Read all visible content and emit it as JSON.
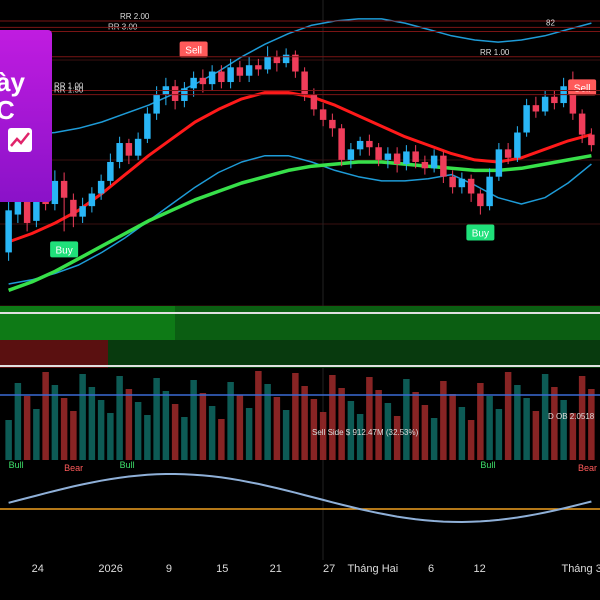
{
  "promo": {
    "text": "ày\nC",
    "icon": "chart-up-icon"
  },
  "chart_data": {
    "type": "candlestick",
    "xlabel": "",
    "ylabel": "",
    "x_ticks": [
      "24",
      "2026",
      "9",
      "15",
      "21",
      "27",
      "Tháng Hai",
      "6",
      "12",
      "Tháng 3"
    ],
    "candles": [
      {
        "o": 1.0,
        "c": 3.0,
        "h": 3.5,
        "l": 0.6,
        "d": "bull"
      },
      {
        "o": 2.8,
        "c": 3.6,
        "h": 4.2,
        "l": 2.4,
        "d": "bull"
      },
      {
        "o": 3.6,
        "c": 2.4,
        "h": 4.0,
        "l": 2.0,
        "d": "bear"
      },
      {
        "o": 2.5,
        "c": 3.9,
        "h": 4.4,
        "l": 2.2,
        "d": "bull"
      },
      {
        "o": 3.9,
        "c": 3.3,
        "h": 4.3,
        "l": 3.0,
        "d": "bear"
      },
      {
        "o": 3.3,
        "c": 4.4,
        "h": 4.9,
        "l": 3.0,
        "d": "bull"
      },
      {
        "o": 4.4,
        "c": 3.6,
        "h": 4.8,
        "l": 2.0,
        "d": "bear"
      },
      {
        "o": 3.5,
        "c": 2.7,
        "h": 3.8,
        "l": 2.2,
        "d": "bear"
      },
      {
        "o": 2.7,
        "c": 3.2,
        "h": 3.6,
        "l": 2.4,
        "d": "bull"
      },
      {
        "o": 3.2,
        "c": 3.8,
        "h": 4.1,
        "l": 2.9,
        "d": "bull"
      },
      {
        "o": 3.8,
        "c": 4.4,
        "h": 4.7,
        "l": 3.5,
        "d": "bull"
      },
      {
        "o": 4.4,
        "c": 5.3,
        "h": 5.7,
        "l": 4.2,
        "d": "bull"
      },
      {
        "o": 5.3,
        "c": 6.2,
        "h": 6.5,
        "l": 5.0,
        "d": "bull"
      },
      {
        "o": 6.2,
        "c": 5.6,
        "h": 6.4,
        "l": 5.2,
        "d": "bear"
      },
      {
        "o": 5.6,
        "c": 6.4,
        "h": 6.7,
        "l": 5.4,
        "d": "bull"
      },
      {
        "o": 6.4,
        "c": 7.6,
        "h": 7.9,
        "l": 6.2,
        "d": "bull"
      },
      {
        "o": 7.6,
        "c": 8.5,
        "h": 8.9,
        "l": 7.3,
        "d": "bull"
      },
      {
        "o": 8.5,
        "c": 8.9,
        "h": 9.3,
        "l": 8.0,
        "d": "bull"
      },
      {
        "o": 8.9,
        "c": 8.2,
        "h": 9.2,
        "l": 7.8,
        "d": "bear"
      },
      {
        "o": 8.2,
        "c": 8.8,
        "h": 9.1,
        "l": 7.9,
        "d": "bull"
      },
      {
        "o": 8.8,
        "c": 9.3,
        "h": 9.6,
        "l": 8.4,
        "d": "bull"
      },
      {
        "o": 9.3,
        "c": 9.0,
        "h": 9.7,
        "l": 8.6,
        "d": "bear"
      },
      {
        "o": 9.0,
        "c": 9.6,
        "h": 9.9,
        "l": 8.7,
        "d": "bull"
      },
      {
        "o": 9.6,
        "c": 9.1,
        "h": 9.9,
        "l": 8.8,
        "d": "bear"
      },
      {
        "o": 9.1,
        "c": 9.8,
        "h": 10.2,
        "l": 8.8,
        "d": "bull"
      },
      {
        "o": 9.8,
        "c": 9.4,
        "h": 10.1,
        "l": 9.1,
        "d": "bear"
      },
      {
        "o": 9.4,
        "c": 9.9,
        "h": 10.3,
        "l": 9.1,
        "d": "bull"
      },
      {
        "o": 9.9,
        "c": 9.7,
        "h": 10.2,
        "l": 9.4,
        "d": "bear"
      },
      {
        "o": 9.7,
        "c": 10.3,
        "h": 10.8,
        "l": 9.5,
        "d": "bull"
      },
      {
        "o": 10.3,
        "c": 10.0,
        "h": 10.6,
        "l": 9.6,
        "d": "bear"
      },
      {
        "o": 10.0,
        "c": 10.4,
        "h": 10.7,
        "l": 9.8,
        "d": "bull"
      },
      {
        "o": 10.4,
        "c": 9.6,
        "h": 10.6,
        "l": 9.3,
        "d": "bear"
      },
      {
        "o": 9.6,
        "c": 8.5,
        "h": 9.8,
        "l": 8.2,
        "d": "bear"
      },
      {
        "o": 8.5,
        "c": 7.8,
        "h": 8.8,
        "l": 7.5,
        "d": "bear"
      },
      {
        "o": 7.8,
        "c": 7.3,
        "h": 8.1,
        "l": 7.0,
        "d": "bear"
      },
      {
        "o": 7.3,
        "c": 6.9,
        "h": 7.6,
        "l": 6.5,
        "d": "bear"
      },
      {
        "o": 6.9,
        "c": 5.4,
        "h": 7.1,
        "l": 5.1,
        "d": "bear"
      },
      {
        "o": 5.4,
        "c": 5.9,
        "h": 6.2,
        "l": 5.0,
        "d": "bull"
      },
      {
        "o": 5.9,
        "c": 6.3,
        "h": 6.5,
        "l": 5.6,
        "d": "bull"
      },
      {
        "o": 6.3,
        "c": 6.0,
        "h": 6.6,
        "l": 5.6,
        "d": "bear"
      },
      {
        "o": 6.0,
        "c": 5.4,
        "h": 6.2,
        "l": 5.1,
        "d": "bear"
      },
      {
        "o": 5.4,
        "c": 5.7,
        "h": 6.0,
        "l": 5.0,
        "d": "bull"
      },
      {
        "o": 5.7,
        "c": 5.2,
        "h": 6.0,
        "l": 4.8,
        "d": "bear"
      },
      {
        "o": 5.2,
        "c": 5.8,
        "h": 6.1,
        "l": 4.9,
        "d": "bull"
      },
      {
        "o": 5.8,
        "c": 5.3,
        "h": 6.1,
        "l": 5.0,
        "d": "bear"
      },
      {
        "o": 5.3,
        "c": 5.0,
        "h": 5.6,
        "l": 4.7,
        "d": "bear"
      },
      {
        "o": 5.0,
        "c": 5.6,
        "h": 5.9,
        "l": 4.8,
        "d": "bull"
      },
      {
        "o": 5.6,
        "c": 4.6,
        "h": 5.8,
        "l": 4.3,
        "d": "bear"
      },
      {
        "o": 4.6,
        "c": 4.1,
        "h": 4.9,
        "l": 3.8,
        "d": "bear"
      },
      {
        "o": 4.1,
        "c": 4.5,
        "h": 4.8,
        "l": 3.8,
        "d": "bull"
      },
      {
        "o": 4.5,
        "c": 3.8,
        "h": 4.7,
        "l": 3.4,
        "d": "bear"
      },
      {
        "o": 3.8,
        "c": 3.2,
        "h": 4.0,
        "l": 2.8,
        "d": "bear"
      },
      {
        "o": 3.2,
        "c": 4.6,
        "h": 5.0,
        "l": 3.0,
        "d": "bull"
      },
      {
        "o": 4.6,
        "c": 5.9,
        "h": 6.2,
        "l": 4.4,
        "d": "bull"
      },
      {
        "o": 5.9,
        "c": 5.5,
        "h": 6.2,
        "l": 5.2,
        "d": "bear"
      },
      {
        "o": 5.5,
        "c": 6.7,
        "h": 7.0,
        "l": 5.3,
        "d": "bull"
      },
      {
        "o": 6.7,
        "c": 8.0,
        "h": 8.3,
        "l": 6.5,
        "d": "bull"
      },
      {
        "o": 8.0,
        "c": 7.7,
        "h": 8.4,
        "l": 7.4,
        "d": "bear"
      },
      {
        "o": 7.7,
        "c": 8.4,
        "h": 8.7,
        "l": 7.5,
        "d": "bull"
      },
      {
        "o": 8.4,
        "c": 8.1,
        "h": 8.7,
        "l": 7.8,
        "d": "bear"
      },
      {
        "o": 8.1,
        "c": 8.9,
        "h": 9.3,
        "l": 7.9,
        "d": "bull"
      },
      {
        "o": 8.9,
        "c": 7.6,
        "h": 9.6,
        "l": 7.3,
        "d": "bear"
      },
      {
        "o": 7.6,
        "c": 6.6,
        "h": 7.8,
        "l": 6.2,
        "d": "bear"
      },
      {
        "o": 6.6,
        "c": 6.1,
        "h": 6.9,
        "l": 5.8,
        "d": "bear"
      }
    ],
    "bollinger_upper": [
      6.5,
      6.6,
      6.7,
      6.9,
      7.2,
      7.6,
      8.0,
      8.5,
      9.0,
      9.6,
      10.3,
      10.9,
      11.4,
      11.8,
      12.0,
      12.1,
      12.1,
      11.9,
      11.6,
      11.3,
      11.1,
      11.0,
      11.1,
      11.3,
      11.6,
      11.9
    ],
    "bollinger_lower": [
      -0.5,
      -0.3,
      0.0,
      0.4,
      1.0,
      1.7,
      2.5,
      3.3,
      4.1,
      4.8,
      5.3,
      5.6,
      5.6,
      5.3,
      4.9,
      4.6,
      4.4,
      4.4,
      4.5,
      4.7,
      4.2,
      3.6,
      3.3,
      3.6,
      4.3,
      5.2
    ],
    "ema_red": [
      1.5,
      1.9,
      2.4,
      3.0,
      3.8,
      4.7,
      5.6,
      6.4,
      7.2,
      7.8,
      8.3,
      8.6,
      8.6,
      8.4,
      8.0,
      7.5,
      7.0,
      6.5,
      6.1,
      5.7,
      5.4,
      5.3,
      5.5,
      5.9,
      6.3,
      6.6
    ],
    "sma_green": [
      -0.8,
      -0.4,
      0.1,
      0.7,
      1.3,
      1.9,
      2.5,
      3.0,
      3.5,
      3.9,
      4.3,
      4.6,
      4.9,
      5.1,
      5.2,
      5.3,
      5.3,
      5.2,
      5.1,
      5.0,
      4.9,
      4.9,
      5.0,
      5.2,
      5.4,
      5.6
    ],
    "signals": [
      {
        "i": 3,
        "type": "Sell"
      },
      {
        "i": 6,
        "type": "Buy"
      },
      {
        "i": 20,
        "type": "Sell"
      },
      {
        "i": 51,
        "type": "Buy"
      },
      {
        "i": 62,
        "type": "Sell"
      }
    ],
    "level_labels": [
      {
        "text": "RR 2.00",
        "y": 12.0,
        "x": 0.2
      },
      {
        "text": "RR 3.00",
        "y": 11.5,
        "x": 0.18
      },
      {
        "text": "RR 1.00",
        "y": 10.3,
        "x": 0.8
      },
      {
        "text": "RR 1.00",
        "y": 8.7,
        "x": 0.09
      },
      {
        "text": "RR 1.50",
        "y": 8.5,
        "x": 0.09
      },
      {
        "text": "82",
        "y": 11.7,
        "x": 0.91
      }
    ],
    "zone_labels": [
      "Sell Side",
      "$ 912.47M (32.53%)",
      "D OB 2.0518"
    ],
    "oscillator_labels": [
      {
        "text": "Bull",
        "i": 0
      },
      {
        "text": "Bear",
        "i": 6
      },
      {
        "text": "Bull",
        "i": 12
      },
      {
        "text": "Bull",
        "i": 51
      },
      {
        "text": "Bear",
        "i": 64
      }
    ],
    "colors": {
      "bull": "#29b6f6",
      "bear": "#ef3d5a",
      "ema": "#ff1a1a",
      "sma": "#37e04a",
      "band": "#1e9bd7",
      "buy": "#1fe07a",
      "sell": "#ff5a5a"
    }
  }
}
